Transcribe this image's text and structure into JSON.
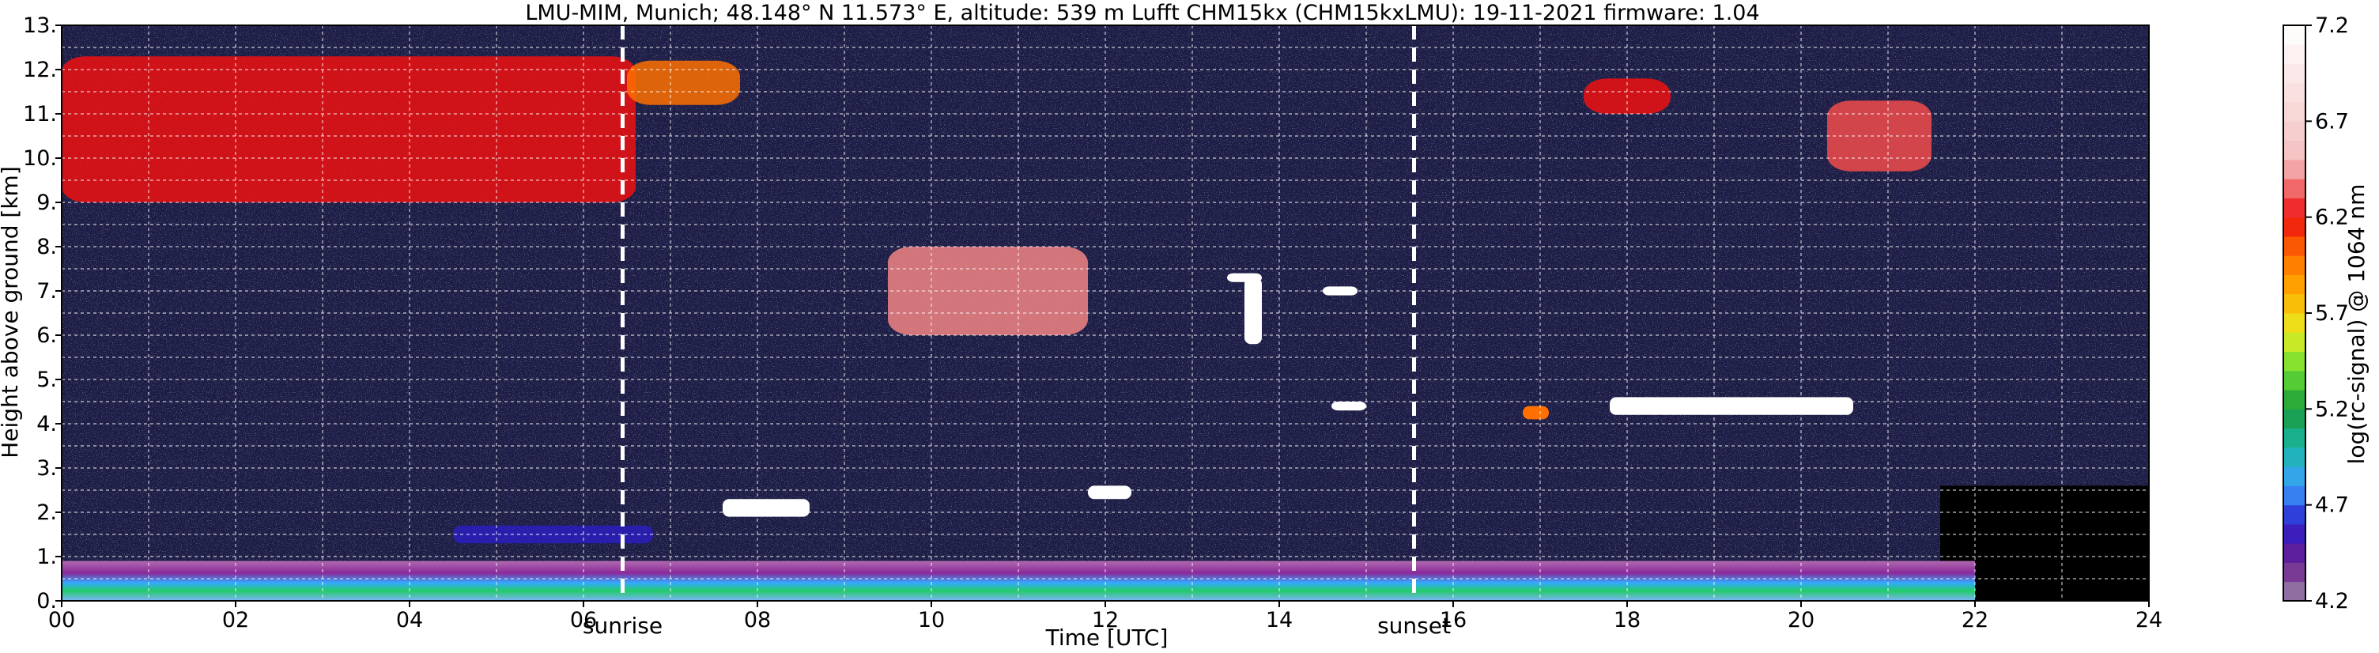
{
  "header": {
    "title": "LMU-MIM, Munich; 48.148° N 11.573° E, altitude: 539 m    Lufft CHM15kx (CHM15kxLMU): 19-11-2021    firmware: 1.04"
  },
  "chart_data": {
    "type": "heatmap",
    "title": "LMU-MIM, Munich; 48.148° N 11.573° E, altitude: 539 m    Lufft CHM15kx (CHM15kxLMU): 19-11-2021    firmware: 1.04",
    "xlabel": "Time [UTC]",
    "ylabel": "Height above ground [km]",
    "xlim": [
      0,
      24
    ],
    "ylim": [
      0,
      13
    ],
    "x_ticks": [
      0,
      2,
      4,
      6,
      8,
      10,
      12,
      14,
      16,
      18,
      20,
      22,
      24
    ],
    "x_tick_labels": [
      "00",
      "02",
      "04",
      "06",
      "08",
      "10",
      "12",
      "14",
      "16",
      "18",
      "20",
      "22",
      "24"
    ],
    "y_ticks": [
      0,
      1,
      2,
      3,
      4,
      5,
      6,
      7,
      8,
      9,
      10,
      11,
      12,
      13
    ],
    "y_tick_labels": [
      "0.",
      "1.",
      "2.",
      "3.",
      "4.",
      "5.",
      "6.",
      "7.",
      "8.",
      "9.",
      "10.",
      "11.",
      "12.",
      "13."
    ],
    "grid": true,
    "colorbar": {
      "label": "log(rc-signal) @ 1064 nm",
      "range": [
        4.2,
        7.2
      ],
      "ticks": [
        4.2,
        4.7,
        5.2,
        5.7,
        6.2,
        6.7,
        7.2
      ],
      "tick_labels": [
        "4.2",
        "4.7",
        "5.2",
        "5.7",
        "6.2",
        "6.7",
        "7.2"
      ]
    },
    "annotations": [
      {
        "label": "sunrise",
        "time": 6.45
      },
      {
        "label": "sunset",
        "time": 15.55
      }
    ],
    "features": [
      {
        "kind": "cirrus",
        "t_start": 0.0,
        "t_end": 6.6,
        "z_bottom": 9.0,
        "z_top": 12.3,
        "intensity": 6.2
      },
      {
        "kind": "cirrus",
        "t_start": 6.5,
        "t_end": 7.8,
        "z_bottom": 11.2,
        "z_top": 12.2,
        "intensity": 6.0
      },
      {
        "kind": "cirrus",
        "t_start": 9.5,
        "t_end": 11.8,
        "z_bottom": 6.0,
        "z_top": 8.0,
        "intensity": 6.4
      },
      {
        "kind": "cirrus",
        "t_start": 17.5,
        "t_end": 18.5,
        "z_bottom": 11.0,
        "z_top": 11.8,
        "intensity": 6.2
      },
      {
        "kind": "cirrus",
        "t_start": 20.3,
        "t_end": 21.5,
        "z_bottom": 9.7,
        "z_top": 11.3,
        "intensity": 6.3
      },
      {
        "kind": "cloud",
        "t_start": 7.6,
        "t_end": 8.6,
        "z_bottom": 1.9,
        "z_top": 2.3,
        "intensity": 7.2
      },
      {
        "kind": "cloud",
        "t_start": 11.8,
        "t_end": 12.3,
        "z_bottom": 2.3,
        "z_top": 2.6,
        "intensity": 7.2
      },
      {
        "kind": "cloud",
        "t_start": 13.4,
        "t_end": 13.8,
        "z_bottom": 7.2,
        "z_top": 7.4,
        "intensity": 7.2
      },
      {
        "kind": "cloud",
        "t_start": 13.6,
        "t_end": 13.8,
        "z_bottom": 5.8,
        "z_top": 7.3,
        "intensity": 7.2
      },
      {
        "kind": "cloud",
        "t_start": 14.5,
        "t_end": 14.9,
        "z_bottom": 6.9,
        "z_top": 7.1,
        "intensity": 7.2
      },
      {
        "kind": "cloud",
        "t_start": 14.6,
        "t_end": 15.0,
        "z_bottom": 4.3,
        "z_top": 4.5,
        "intensity": 7.2
      },
      {
        "kind": "cloud",
        "t_start": 16.8,
        "t_end": 17.1,
        "z_bottom": 4.1,
        "z_top": 4.4,
        "intensity": 6.0
      },
      {
        "kind": "cloud",
        "t_start": 17.8,
        "t_end": 20.6,
        "z_bottom": 4.2,
        "z_top": 4.6,
        "intensity": 7.2
      },
      {
        "kind": "residual-layer",
        "t_start": 4.5,
        "t_end": 6.8,
        "z_bottom": 1.3,
        "z_top": 1.7,
        "intensity": 4.6
      },
      {
        "kind": "boundary-layer",
        "t_start": 0.0,
        "t_end": 22.0,
        "z_bottom": 0.0,
        "z_top": 0.9,
        "intensity": 5.3
      }
    ],
    "colors": {
      "background": "#1c1c44",
      "grid": "#ffffff",
      "terminator": "#ffffff",
      "no_signal": "#000000"
    }
  }
}
